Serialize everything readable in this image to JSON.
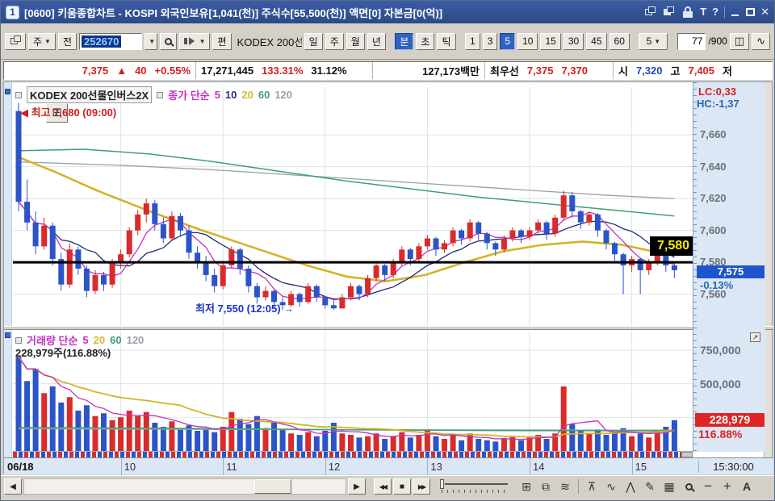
{
  "titlebar": {
    "badge": "1",
    "title": "[0600] 키움종합차트 - KOSPI 외국인보유[1,041(천)] 주식수[55,500(천)] 액면[0] 자본금[0(억)]",
    "topmost_glyph": "T",
    "help_glyph": "?",
    "close_glyph": "✕"
  },
  "icons": {
    "chevron_down": "▼"
  },
  "toolbar": {
    "period_combo": "주",
    "prev_button": "전",
    "code_input": "252670",
    "flag_button": "편",
    "stock_label": "KODEX 200선",
    "period_buttons": [
      "일",
      "주",
      "월",
      "년"
    ],
    "mode_buttons": [
      "분",
      "초",
      "틱"
    ],
    "interval_buttons": [
      "1",
      "3",
      "5",
      "10",
      "15",
      "30",
      "45",
      "60"
    ],
    "interval_combo": "5",
    "count_value": "77",
    "count_total": "/900"
  },
  "infobar": {
    "price": "7,375",
    "arrow": "▲",
    "change": "40",
    "change_pct": "+0.55%",
    "volume": "17,271,445",
    "vol_ratio": "133.31%",
    "turnover": "31.12%",
    "amount": "127,173백만",
    "best_label": "최우선",
    "ask": "7,375",
    "bid": "7,370",
    "open_label": "시",
    "open": "7,320",
    "high_label": "고",
    "high": "7,405",
    "low_label": "저"
  },
  "chart": {
    "stock_name": "KODEX 200선물인버스2X",
    "legend_label": "종가 단순",
    "ma_periods": [
      "5",
      "10",
      "20",
      "60",
      "120"
    ],
    "grid_icon_glyph": "⊞",
    "high_annotation_arrow": "◀",
    "high_annotation": "최고 7,680 (09:00)",
    "low_annotation": "최저 7,550 (12:05)",
    "low_annotation_arrow": "→",
    "lc_label": "LC:0,33",
    "hc_label": "HC:-1,37",
    "hline_label": "7,580",
    "price_box": "7,575",
    "price_box_pct": "-0.13%"
  },
  "volume": {
    "legend_label": "거래량 단순",
    "ma_periods": [
      "5",
      "20",
      "60",
      "120"
    ],
    "current_label": "228,979주(116.88%)",
    "box_value": "228,979",
    "box_pct": "116.88%",
    "expand_glyph": "↗"
  },
  "time_axis": {
    "start_label": "06/18",
    "end_label": "15:30:00"
  },
  "bottom_toolbar": {
    "scroll_left": "◀",
    "scroll_right": "▶",
    "rewind": "◀◀",
    "stop": "■",
    "forward": "▶▶",
    "icons": [
      {
        "name": "tile-windows-icon",
        "glyph": "⊞"
      },
      {
        "name": "cascade-windows-icon",
        "glyph": "⧉"
      },
      {
        "name": "line-style-icon",
        "glyph": "≋"
      },
      {
        "name": "crosshair-tool-icon",
        "glyph": "⊼"
      },
      {
        "name": "trendline-tool-icon",
        "glyph": "∿"
      },
      {
        "name": "wave-tool-icon",
        "glyph": "⋀"
      },
      {
        "name": "draw-tool-icon",
        "glyph": "✎"
      },
      {
        "name": "chart-image-icon",
        "glyph": "▦"
      }
    ],
    "zoom_out": "−",
    "zoom_in": "+",
    "text_tool": "A"
  },
  "colors": {
    "up": "#d92b2b",
    "down": "#2b54c8",
    "ma5": "#c233c2",
    "ma10": "#1c2c78",
    "ma20": "#d2b428",
    "ma60": "#3f9e74",
    "ma120": "#9aa0a6",
    "grid": "#dfe3e8",
    "hline": "#000000",
    "axis_bg": "#dbe7f5",
    "price_box_bg": "#1f55cc",
    "vol_box_bg": "#e02525",
    "tag_text": "#ffee00"
  },
  "chart_data": {
    "type": "candlestick",
    "title": "KODEX 200선물인버스2X 5분봉",
    "interval_minutes": 5,
    "session_start": "09:00",
    "session_end": "15:30",
    "bar_count": 78,
    "price_domain": [
      7540,
      7690
    ],
    "volume_domain": [
      0,
      900000
    ],
    "hline_price": 7580,
    "day_high": 7680,
    "day_high_time": "09:00",
    "day_low": 7550,
    "day_low_time": "12:05",
    "last_close": 7575,
    "last_change_pct": -0.13,
    "y_ticks": [
      {
        "v": 7660,
        "label": "7,660"
      },
      {
        "v": 7640,
        "label": "7,640"
      },
      {
        "v": 7620,
        "label": "7,620"
      },
      {
        "v": 7600,
        "label": "7,600"
      },
      {
        "v": 7580,
        "label": "7,580"
      },
      {
        "v": 7560,
        "label": "7,560"
      }
    ],
    "x_ticks": [
      {
        "bar": 12,
        "label": "10"
      },
      {
        "bar": 24,
        "label": "11"
      },
      {
        "bar": 36,
        "label": "12"
      },
      {
        "bar": 48,
        "label": "13"
      },
      {
        "bar": 60,
        "label": "14"
      },
      {
        "bar": 72,
        "label": "15"
      }
    ],
    "vol_ticks": [
      {
        "v": 750000,
        "label": "750,000"
      },
      {
        "v": 500000,
        "label": "500,000"
      },
      {
        "v": 250000,
        "label": ""
      }
    ],
    "candles": [
      [
        7675,
        7680,
        7612,
        7618
      ],
      [
        7618,
        7632,
        7600,
        7605
      ],
      [
        7605,
        7612,
        7585,
        7590
      ],
      [
        7590,
        7608,
        7588,
        7603
      ],
      [
        7603,
        7605,
        7578,
        7582
      ],
      [
        7582,
        7586,
        7562,
        7566
      ],
      [
        7566,
        7592,
        7564,
        7588
      ],
      [
        7588,
        7590,
        7572,
        7576
      ],
      [
        7576,
        7578,
        7558,
        7562
      ],
      [
        7562,
        7575,
        7560,
        7572
      ],
      [
        7572,
        7574,
        7562,
        7566
      ],
      [
        7566,
        7582,
        7564,
        7580
      ],
      [
        7580,
        7588,
        7576,
        7585
      ],
      [
        7585,
        7602,
        7583,
        7600
      ],
      [
        7600,
        7613,
        7597,
        7610
      ],
      [
        7610,
        7620,
        7605,
        7617
      ],
      [
        7617,
        7619,
        7600,
        7604
      ],
      [
        7604,
        7608,
        7592,
        7595
      ],
      [
        7595,
        7612,
        7594,
        7609
      ],
      [
        7609,
        7611,
        7596,
        7600
      ],
      [
        7600,
        7603,
        7582,
        7586
      ],
      [
        7586,
        7590,
        7576,
        7580
      ],
      [
        7580,
        7584,
        7568,
        7572
      ],
      [
        7572,
        7576,
        7561,
        7565
      ],
      [
        7565,
        7581,
        7563,
        7578
      ],
      [
        7578,
        7590,
        7576,
        7588
      ],
      [
        7588,
        7589,
        7572,
        7576
      ],
      [
        7576,
        7578,
        7561,
        7565
      ],
      [
        7565,
        7567,
        7554,
        7558
      ],
      [
        7558,
        7565,
        7556,
        7562
      ],
      [
        7562,
        7563,
        7551,
        7555
      ],
      [
        7555,
        7558,
        7550,
        7553
      ],
      [
        7553,
        7562,
        7552,
        7560
      ],
      [
        7560,
        7561,
        7552,
        7555
      ],
      [
        7555,
        7567,
        7554,
        7565
      ],
      [
        7565,
        7566,
        7555,
        7558
      ],
      [
        7558,
        7559,
        7551,
        7553
      ],
      [
        7553,
        7556,
        7550,
        7551
      ],
      [
        7551,
        7560,
        7551,
        7558
      ],
      [
        7558,
        7567,
        7556,
        7565
      ],
      [
        7565,
        7566,
        7556,
        7560
      ],
      [
        7560,
        7572,
        7558,
        7570
      ],
      [
        7570,
        7580,
        7568,
        7578
      ],
      [
        7578,
        7579,
        7568,
        7572
      ],
      [
        7572,
        7582,
        7570,
        7580
      ],
      [
        7580,
        7590,
        7578,
        7588
      ],
      [
        7588,
        7589,
        7578,
        7582
      ],
      [
        7582,
        7592,
        7580,
        7590
      ],
      [
        7590,
        7597,
        7588,
        7595
      ],
      [
        7595,
        7596,
        7584,
        7588
      ],
      [
        7588,
        7594,
        7586,
        7592
      ],
      [
        7592,
        7602,
        7590,
        7600
      ],
      [
        7600,
        7601,
        7591,
        7595
      ],
      [
        7595,
        7607,
        7593,
        7605
      ],
      [
        7605,
        7606,
        7594,
        7598
      ],
      [
        7598,
        7599,
        7588,
        7592
      ],
      [
        7592,
        7593,
        7584,
        7588
      ],
      [
        7588,
        7597,
        7586,
        7595
      ],
      [
        7595,
        7602,
        7593,
        7600
      ],
      [
        7600,
        7601,
        7592,
        7596
      ],
      [
        7596,
        7602,
        7594,
        7600
      ],
      [
        7600,
        7607,
        7598,
        7605
      ],
      [
        7605,
        7606,
        7594,
        7598
      ],
      [
        7598,
        7610,
        7596,
        7608
      ],
      [
        7608,
        7625,
        7606,
        7622
      ],
      [
        7622,
        7624,
        7608,
        7612
      ],
      [
        7612,
        7613,
        7601,
        7605
      ],
      [
        7605,
        7612,
        7603,
        7610
      ],
      [
        7610,
        7611,
        7596,
        7600
      ],
      [
        7600,
        7601,
        7588,
        7592
      ],
      [
        7592,
        7593,
        7581,
        7585
      ],
      [
        7585,
        7586,
        7560,
        7578
      ],
      [
        7578,
        7584,
        7574,
        7582
      ],
      [
        7582,
        7583,
        7560,
        7575
      ],
      [
        7575,
        7582,
        7572,
        7580
      ],
      [
        7580,
        7587,
        7578,
        7585
      ],
      [
        7585,
        7586,
        7574,
        7578
      ],
      [
        7578,
        7580,
        7570,
        7575
      ]
    ],
    "volumes": [
      700000,
      520000,
      610000,
      430000,
      480000,
      360000,
      400000,
      300000,
      340000,
      260000,
      280000,
      230000,
      250000,
      300000,
      260000,
      290000,
      210000,
      180000,
      220000,
      170000,
      190000,
      150000,
      160000,
      140000,
      180000,
      290000,
      240000,
      200000,
      260000,
      170000,
      210000,
      160000,
      130000,
      120000,
      140000,
      110000,
      150000,
      210000,
      130000,
      120000,
      100000,
      110000,
      130000,
      90000,
      110000,
      140000,
      100000,
      120000,
      160000,
      110000,
      90000,
      120000,
      80000,
      130000,
      90000,
      80000,
      70000,
      90000,
      110000,
      80000,
      100000,
      120000,
      90000,
      130000,
      480000,
      200000,
      150000,
      130000,
      160000,
      120000,
      140000,
      170000,
      110000,
      130000,
      100000,
      150000,
      180000,
      228979
    ],
    "overlays": {
      "ma20": [
        [
          0,
          7646
        ],
        [
          0.06,
          7636
        ],
        [
          0.12,
          7625
        ],
        [
          0.2,
          7612
        ],
        [
          0.28,
          7600
        ],
        [
          0.36,
          7589
        ],
        [
          0.44,
          7578
        ],
        [
          0.5,
          7571
        ],
        [
          0.56,
          7568
        ],
        [
          0.62,
          7572
        ],
        [
          0.68,
          7580
        ],
        [
          0.74,
          7587
        ],
        [
          0.8,
          7591
        ],
        [
          0.86,
          7593
        ],
        [
          0.92,
          7591
        ],
        [
          1,
          7584
        ]
      ],
      "ma60": [
        [
          0,
          7650
        ],
        [
          0.1,
          7651
        ],
        [
          0.2,
          7648
        ],
        [
          0.3,
          7643
        ],
        [
          0.4,
          7637
        ],
        [
          0.5,
          7631
        ],
        [
          0.6,
          7626
        ],
        [
          0.7,
          7621
        ],
        [
          0.8,
          7617
        ],
        [
          0.9,
          7613
        ],
        [
          1,
          7609
        ]
      ],
      "ma120": [
        [
          0,
          7643
        ],
        [
          0.15,
          7641
        ],
        [
          0.3,
          7638
        ],
        [
          0.45,
          7634
        ],
        [
          0.6,
          7630
        ],
        [
          0.75,
          7626
        ],
        [
          0.9,
          7622
        ],
        [
          1,
          7620
        ]
      ],
      "vol_ma60": [
        [
          0,
          175000
        ],
        [
          0.25,
          168000
        ],
        [
          0.5,
          158000
        ],
        [
          0.75,
          152000
        ],
        [
          1,
          150000
        ]
      ],
      "vol_ma120": [
        [
          0,
          165000
        ],
        [
          0.5,
          158000
        ],
        [
          1,
          155000
        ]
      ]
    }
  }
}
